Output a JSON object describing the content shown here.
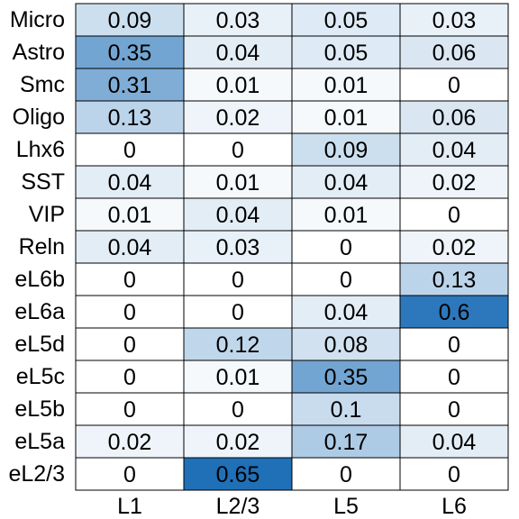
{
  "chart_data": {
    "type": "heatmap",
    "columns": [
      "L1",
      "L2/3",
      "L5",
      "L6"
    ],
    "rows": [
      "Micro",
      "Astro",
      "Smc",
      "Oligo",
      "Lhx6",
      "SST",
      "VIP",
      "Reln",
      "eL6b",
      "eL6a",
      "eL5d",
      "eL5c",
      "eL5b",
      "eL5a",
      "eL2/3"
    ],
    "values": [
      [
        0.09,
        0.03,
        0.05,
        0.03
      ],
      [
        0.35,
        0.04,
        0.05,
        0.06
      ],
      [
        0.31,
        0.01,
        0.01,
        0
      ],
      [
        0.13,
        0.02,
        0.01,
        0.06
      ],
      [
        0,
        0,
        0.09,
        0.04
      ],
      [
        0.04,
        0.01,
        0.04,
        0.02
      ],
      [
        0.01,
        0.04,
        0.01,
        0
      ],
      [
        0.04,
        0.03,
        0,
        0.02
      ],
      [
        0,
        0,
        0,
        0.13
      ],
      [
        0,
        0,
        0.04,
        0.6
      ],
      [
        0,
        0.12,
        0.08,
        0
      ],
      [
        0,
        0.01,
        0.35,
        0
      ],
      [
        0,
        0,
        0.1,
        0
      ],
      [
        0.02,
        0.02,
        0.17,
        0.04
      ],
      [
        0,
        0.65,
        0,
        0
      ]
    ],
    "cell_labels": [
      [
        "0.09",
        "0.03",
        "0.05",
        "0.03"
      ],
      [
        "0.35",
        "0.04",
        "0.05",
        "0.06"
      ],
      [
        "0.31",
        "0.01",
        "0.01",
        "0"
      ],
      [
        "0.13",
        "0.02",
        "0.01",
        "0.06"
      ],
      [
        "0",
        "0",
        "0.09",
        "0.04"
      ],
      [
        "0.04",
        "0.01",
        "0.04",
        "0.02"
      ],
      [
        "0.01",
        "0.04",
        "0.01",
        "0"
      ],
      [
        "0.04",
        "0.03",
        "0",
        "0.02"
      ],
      [
        "0",
        "0",
        "0",
        "0.13"
      ],
      [
        "0",
        "0",
        "0.04",
        "0.6"
      ],
      [
        "0",
        "0.12",
        "0.08",
        "0"
      ],
      [
        "0",
        "0.01",
        "0.35",
        "0"
      ],
      [
        "0",
        "0",
        "0.1",
        "0"
      ],
      [
        "0.02",
        "0.02",
        "0.17",
        "0.04"
      ],
      [
        "0",
        "0.65",
        "0",
        "0"
      ]
    ],
    "color_scale": {
      "min": 0,
      "max": 0.65,
      "low_color": "#ffffff",
      "high_color": "#2070b8"
    },
    "title": "",
    "xlabel": "",
    "ylabel": "",
    "grid": true,
    "legend": "none"
  }
}
